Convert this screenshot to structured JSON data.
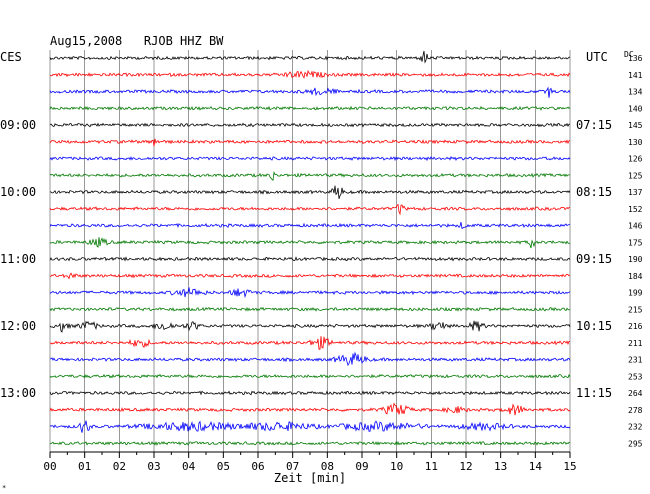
{
  "header": {
    "title": "Aug15,2008   RJOB HHZ BW",
    "left_tz": "CES",
    "right_tz": "UTC",
    "dc_label": "DC"
  },
  "chart_data": {
    "type": "line",
    "title": "Aug15,2008   RJOB HHZ BW",
    "xlabel": "Zeit [min]",
    "xlim": [
      0,
      15
    ],
    "x_ticks": [
      "00",
      "01",
      "02",
      "03",
      "04",
      "05",
      "06",
      "07",
      "08",
      "09",
      "10",
      "11",
      "12",
      "13",
      "14",
      "15"
    ],
    "trace_colors": [
      "#000000",
      "#ff0000",
      "#0000ff",
      "#007a00"
    ],
    "left_hour_labels": [
      {
        "row": 4,
        "text": "09:00"
      },
      {
        "row": 8,
        "text": "10:00"
      },
      {
        "row": 12,
        "text": "11:00"
      },
      {
        "row": 16,
        "text": "12:00"
      },
      {
        "row": 20,
        "text": "13:00"
      }
    ],
    "right_hour_labels": [
      {
        "row": 4,
        "text": "07:15"
      },
      {
        "row": 8,
        "text": "08:15"
      },
      {
        "row": 12,
        "text": "09:15"
      },
      {
        "row": 16,
        "text": "10:15"
      },
      {
        "row": 20,
        "text": "11:15"
      }
    ],
    "dc_offsets": [
      "136",
      "141",
      "134",
      "140",
      "145",
      "130",
      "126",
      "125",
      "137",
      "152",
      "146",
      "175",
      "190",
      "184",
      "199",
      "215",
      "216",
      "211",
      "231",
      "253",
      "264",
      "278",
      "232",
      "295"
    ],
    "events": [
      {
        "row": 0,
        "x": 10.8,
        "amp": 7,
        "width": 0.15
      },
      {
        "row": 1,
        "x": 7.3,
        "amp": 3,
        "width": 0.8
      },
      {
        "row": 2,
        "x": 7.8,
        "amp": 3,
        "width": 0.6
      },
      {
        "row": 2,
        "x": 14.4,
        "amp": 9,
        "width": 0.08
      },
      {
        "row": 5,
        "x": 3.0,
        "amp": 4,
        "width": 0.2
      },
      {
        "row": 7,
        "x": 6.4,
        "amp": 8,
        "width": 0.1
      },
      {
        "row": 8,
        "x": 8.3,
        "amp": 9,
        "width": 0.2
      },
      {
        "row": 9,
        "x": 10.1,
        "amp": 6,
        "width": 0.15
      },
      {
        "row": 10,
        "x": 11.9,
        "amp": 3,
        "width": 0.15
      },
      {
        "row": 11,
        "x": 1.4,
        "amp": 4,
        "width": 0.4
      },
      {
        "row": 11,
        "x": 13.9,
        "amp": 12,
        "width": 0.08
      },
      {
        "row": 13,
        "x": 0.6,
        "amp": 3,
        "width": 0.2
      },
      {
        "row": 14,
        "x": 4.0,
        "amp": 4,
        "width": 0.6
      },
      {
        "row": 14,
        "x": 5.5,
        "amp": 4,
        "width": 0.4
      },
      {
        "row": 16,
        "x": 0.35,
        "amp": 5,
        "width": 0.25
      },
      {
        "row": 16,
        "x": 1.1,
        "amp": 4,
        "width": 0.4
      },
      {
        "row": 16,
        "x": 3.3,
        "amp": 4,
        "width": 0.4
      },
      {
        "row": 16,
        "x": 4.1,
        "amp": 4,
        "width": 0.3
      },
      {
        "row": 16,
        "x": 11.2,
        "amp": 5,
        "width": 0.3
      },
      {
        "row": 16,
        "x": 12.3,
        "amp": 5,
        "width": 0.3
      },
      {
        "row": 17,
        "x": 2.6,
        "amp": 4,
        "width": 0.4
      },
      {
        "row": 17,
        "x": 7.8,
        "amp": 6,
        "width": 0.4
      },
      {
        "row": 18,
        "x": 8.7,
        "amp": 6,
        "width": 0.6
      },
      {
        "row": 21,
        "x": 10.0,
        "amp": 6,
        "width": 0.5
      },
      {
        "row": 21,
        "x": 11.7,
        "amp": 3,
        "width": 0.4
      },
      {
        "row": 21,
        "x": 13.4,
        "amp": 5,
        "width": 0.4
      },
      {
        "row": 22,
        "x": 1.0,
        "amp": 8,
        "width": 0.2
      },
      {
        "row": 22,
        "x": 4.1,
        "amp": 4,
        "width": 2.0
      },
      {
        "row": 22,
        "x": 6.6,
        "amp": 4,
        "width": 1.4
      },
      {
        "row": 22,
        "x": 9.5,
        "amp": 4,
        "width": 1.6
      },
      {
        "row": 22,
        "x": 12.5,
        "amp": 3,
        "width": 1.0
      }
    ]
  }
}
